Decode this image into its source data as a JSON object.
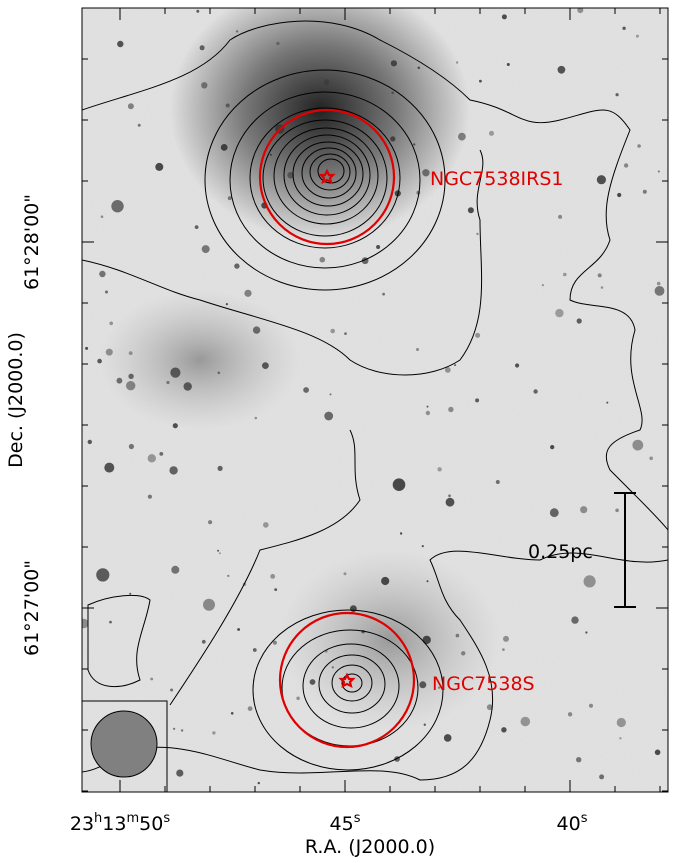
{
  "x_axis": {
    "label": "R.A. (J2000.0)",
    "ticks": [
      {
        "parts": [
          "23",
          "h",
          "13",
          "m",
          "50",
          "s"
        ]
      },
      {
        "parts": [
          "45",
          "s"
        ]
      },
      {
        "parts": [
          "40",
          "s"
        ]
      }
    ]
  },
  "y_axis": {
    "label": "Dec. (J2000.0)",
    "ticks": [
      "61°28'00\"",
      "61°27'00\""
    ]
  },
  "annotations": {
    "source_1": "NGC7538IRS1",
    "source_2": "NGC7538S",
    "scale_bar": "0.25pc"
  }
}
